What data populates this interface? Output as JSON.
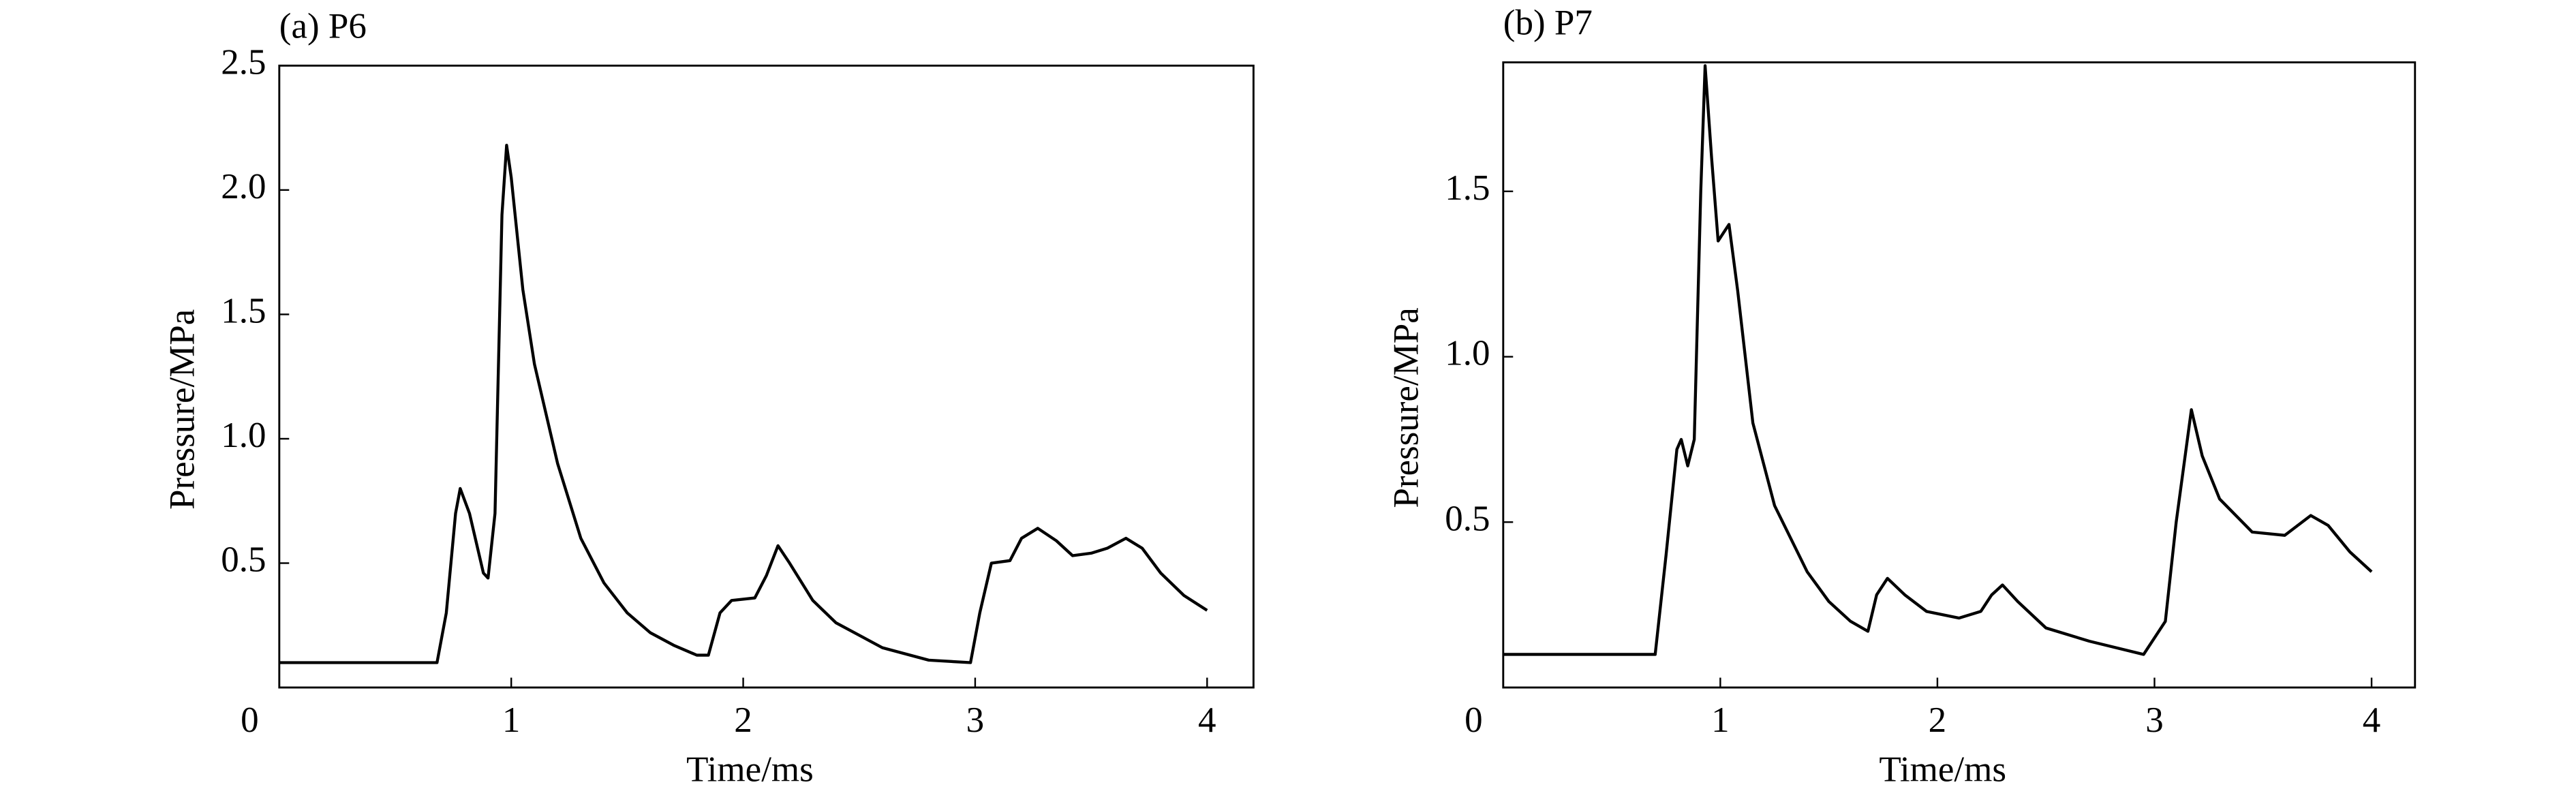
{
  "chart_data": [
    {
      "type": "line",
      "title": "(a) P6",
      "xlabel": "Time/ms",
      "ylabel": "Pressure/MPa",
      "xlim": [
        0,
        4.2
      ],
      "ylim": [
        0,
        2.5
      ],
      "xticks": [
        0,
        1,
        2,
        3,
        4
      ],
      "yticks": [
        {
          "value": 0.5,
          "label": "0.5"
        },
        {
          "value": 1,
          "label": "1.0"
        },
        {
          "value": 1.5,
          "label": "1.5"
        },
        {
          "value": 2,
          "label": "2.0"
        },
        {
          "value": 2.5,
          "label": "2.5"
        }
      ],
      "x": [
        0,
        0.68,
        0.72,
        0.76,
        0.78,
        0.82,
        0.88,
        0.9,
        0.93,
        0.96,
        0.98,
        1.0,
        1.05,
        1.1,
        1.2,
        1.3,
        1.4,
        1.5,
        1.6,
        1.7,
        1.8,
        1.85,
        1.9,
        1.95,
        2.05,
        2.1,
        2.15,
        2.2,
        2.3,
        2.4,
        2.6,
        2.8,
        2.98,
        3.02,
        3.07,
        3.15,
        3.2,
        3.27,
        3.35,
        3.42,
        3.5,
        3.57,
        3.65,
        3.72,
        3.8,
        3.9,
        4.0
      ],
      "series": [
        {
          "color": "#000000",
          "values": [
            0.1,
            0.1,
            0.3,
            0.7,
            0.8,
            0.7,
            0.46,
            0.44,
            0.7,
            1.9,
            2.18,
            2.05,
            1.6,
            1.3,
            0.9,
            0.6,
            0.42,
            0.3,
            0.22,
            0.17,
            0.13,
            0.13,
            0.3,
            0.35,
            0.36,
            0.45,
            0.57,
            0.5,
            0.35,
            0.26,
            0.16,
            0.11,
            0.1,
            0.3,
            0.5,
            0.51,
            0.6,
            0.64,
            0.59,
            0.53,
            0.54,
            0.56,
            0.6,
            0.56,
            0.46,
            0.37,
            0.31
          ]
        }
      ]
    },
    {
      "type": "line",
      "title": "(b) P7",
      "xlabel": "Time/ms",
      "ylabel": "Pressure/MPa",
      "xlim": [
        0,
        4.2
      ],
      "ylim": [
        0,
        1.89
      ],
      "xticks": [
        0,
        1,
        2,
        3,
        4
      ],
      "yticks": [
        {
          "value": 0.5,
          "label": "0.5"
        },
        {
          "value": 1,
          "label": "1.0"
        },
        {
          "value": 1.5,
          "label": "1.5"
        }
      ],
      "x": [
        0,
        0.7,
        0.75,
        0.8,
        0.82,
        0.85,
        0.88,
        0.91,
        0.93,
        0.96,
        0.99,
        1.02,
        1.04,
        1.08,
        1.15,
        1.25,
        1.4,
        1.5,
        1.6,
        1.68,
        1.72,
        1.77,
        1.85,
        1.95,
        2.1,
        2.2,
        2.25,
        2.3,
        2.37,
        2.5,
        2.7,
        2.95,
        3.05,
        3.1,
        3.17,
        3.22,
        3.3,
        3.45,
        3.6,
        3.72,
        3.8,
        3.9,
        4.0
      ],
      "series": [
        {
          "color": "#000000",
          "values": [
            0.1,
            0.1,
            0.4,
            0.72,
            0.75,
            0.67,
            0.75,
            1.5,
            1.88,
            1.6,
            1.35,
            1.38,
            1.4,
            1.2,
            0.8,
            0.55,
            0.35,
            0.26,
            0.2,
            0.17,
            0.28,
            0.33,
            0.28,
            0.23,
            0.21,
            0.23,
            0.28,
            0.31,
            0.26,
            0.18,
            0.14,
            0.1,
            0.2,
            0.5,
            0.84,
            0.7,
            0.57,
            0.47,
            0.46,
            0.52,
            0.49,
            0.41,
            0.35
          ]
        }
      ]
    }
  ]
}
